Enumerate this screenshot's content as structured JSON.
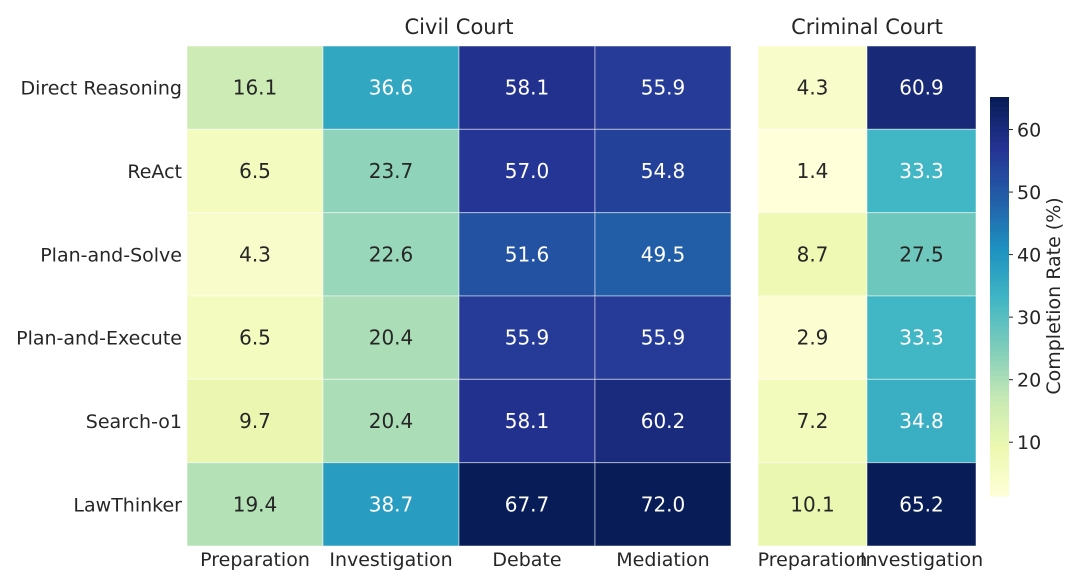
{
  "chart_data": {
    "type": "heatmap",
    "rows": [
      "Direct Reasoning",
      "ReAct",
      "Plan-and-Solve",
      "Plan-and-Execute",
      "Search-o1",
      "LawThinker"
    ],
    "panels": [
      {
        "title": "Civil Court",
        "columns": [
          "Preparation",
          "Investigation",
          "Debate",
          "Mediation"
        ],
        "values": [
          [
            16.1,
            36.6,
            58.1,
            55.9
          ],
          [
            6.5,
            23.7,
            57.0,
            54.8
          ],
          [
            4.3,
            22.6,
            51.6,
            49.5
          ],
          [
            6.5,
            20.4,
            55.9,
            55.9
          ],
          [
            9.7,
            20.4,
            58.1,
            60.2
          ],
          [
            19.4,
            38.7,
            67.7,
            72.0
          ]
        ]
      },
      {
        "title": "Criminal Court",
        "columns": [
          "Preparation",
          "Investigation"
        ],
        "values": [
          [
            4.3,
            60.9
          ],
          [
            1.4,
            33.3
          ],
          [
            8.7,
            27.5
          ],
          [
            2.9,
            33.3
          ],
          [
            7.2,
            34.8
          ],
          [
            10.1,
            65.2
          ]
        ]
      }
    ],
    "colorbar": {
      "label": "Completion Rate (%)",
      "ticks": [
        10,
        20,
        30,
        40,
        50,
        60
      ],
      "range": [
        1.4,
        65.2
      ],
      "colormap": "YlGnBu"
    }
  }
}
